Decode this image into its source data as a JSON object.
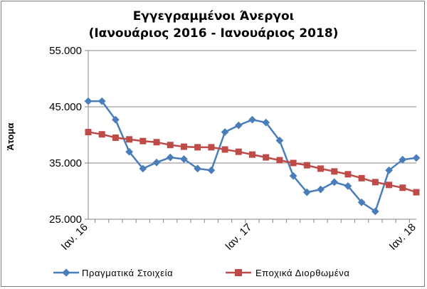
{
  "chart_data": {
    "type": "line",
    "title": "Εγγεγραμμένοι Άνεργοι",
    "subtitle": "(Ιανουάριος 2016 - Ιανουάριος 2018)",
    "ylabel": "Άτομα",
    "xlabel": "",
    "ylim": [
      25000,
      55000
    ],
    "yticks": [
      25000,
      35000,
      45000,
      55000
    ],
    "ytick_labels": [
      "25.000",
      "35.000",
      "45.000",
      "55.000"
    ],
    "x_tick_labels": [
      {
        "index": 0,
        "label": "Ιαν. 16"
      },
      {
        "index": 12,
        "label": "Ιαν. 17"
      },
      {
        "index": 24,
        "label": "Ιαν. 18"
      }
    ],
    "grid": "horizontal",
    "legend": "bottom",
    "series": [
      {
        "name": "Πραγματικά Στοιχεία",
        "color": "#4A7EBB",
        "marker": "diamond",
        "values": [
          46000,
          46000,
          42700,
          37000,
          34000,
          35100,
          36000,
          35700,
          34000,
          33700,
          40500,
          41700,
          42700,
          42200,
          39000,
          32700,
          29800,
          30300,
          31600,
          30900,
          28000,
          26400,
          33700,
          35600,
          35900
        ]
      },
      {
        "name": "Εποχικά Διορθωμένα",
        "color": "#BE4B48",
        "marker": "square",
        "values": [
          40500,
          40100,
          39500,
          39200,
          38900,
          38700,
          38200,
          37900,
          37800,
          37800,
          37400,
          37000,
          36500,
          36000,
          35500,
          35000,
          34600,
          34000,
          33500,
          33000,
          32300,
          31600,
          31100,
          30600,
          29800
        ]
      }
    ]
  }
}
